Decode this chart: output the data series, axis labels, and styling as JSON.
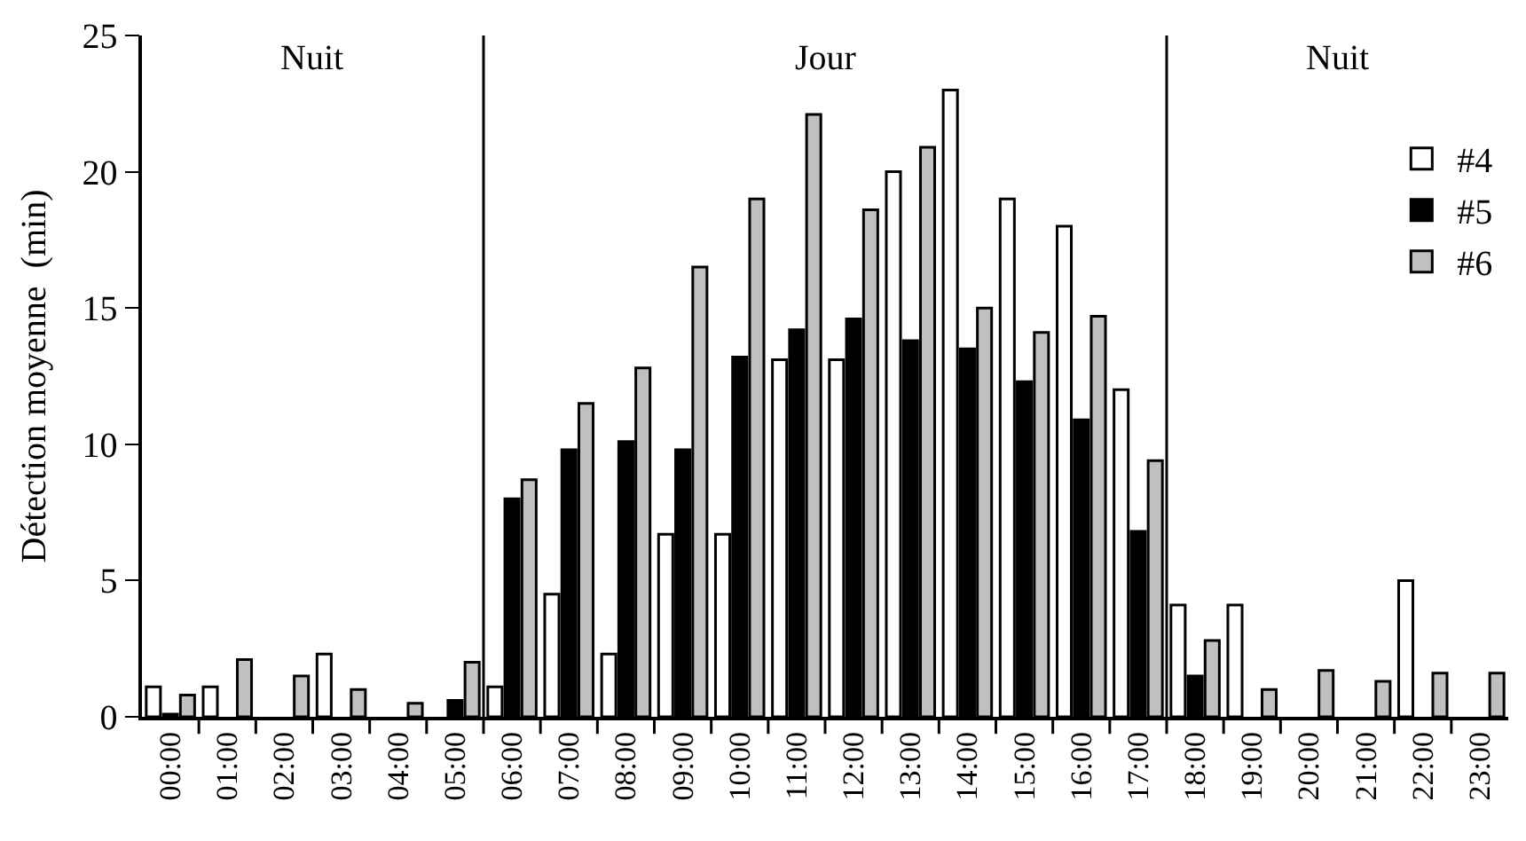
{
  "chart_data": {
    "type": "bar",
    "ylabel": "Détection moyenne  (min)",
    "x": [
      0,
      1,
      2,
      3,
      4,
      5,
      6,
      7,
      8,
      9,
      10,
      11,
      12,
      13,
      14,
      15,
      16,
      17,
      18,
      19,
      20,
      21,
      22,
      23
    ],
    "xlim": [
      -0.5,
      23.5
    ],
    "xticks": [
      {
        "value": 0,
        "label": "00:00"
      },
      {
        "value": 1,
        "label": "01:00"
      },
      {
        "value": 2,
        "label": "02:00"
      },
      {
        "value": 3,
        "label": "03:00"
      },
      {
        "value": 4,
        "label": "04:00"
      },
      {
        "value": 5,
        "label": "05:00"
      },
      {
        "value": 6,
        "label": "06:00"
      },
      {
        "value": 7,
        "label": "07:00"
      },
      {
        "value": 8,
        "label": "08:00"
      },
      {
        "value": 9,
        "label": "09:00"
      },
      {
        "value": 10,
        "label": "10:00"
      },
      {
        "value": 11,
        "label": "11:00"
      },
      {
        "value": 12,
        "label": "12:00"
      },
      {
        "value": 13,
        "label": "13:00"
      },
      {
        "value": 14,
        "label": "14:00"
      },
      {
        "value": 15,
        "label": "15:00"
      },
      {
        "value": 16,
        "label": "16:00"
      },
      {
        "value": 17,
        "label": "17:00"
      },
      {
        "value": 18,
        "label": "18:00"
      },
      {
        "value": 19,
        "label": "19:00"
      },
      {
        "value": 20,
        "label": "20:00"
      },
      {
        "value": 21,
        "label": "21:00"
      },
      {
        "value": 22,
        "label": "22:00"
      },
      {
        "value": 23,
        "label": "23:00"
      }
    ],
    "series": [
      {
        "name": "#4",
        "color": "#ffffff",
        "values": [
          1.1,
          1.1,
          0,
          2.3,
          0,
          0,
          1.1,
          4.5,
          2.3,
          6.7,
          6.7,
          13.1,
          13.1,
          20,
          23,
          19,
          18,
          12,
          4.1,
          4.1,
          0,
          0,
          5,
          0
        ]
      },
      {
        "name": "#5",
        "color": "#000000",
        "values": [
          0.1,
          0,
          0,
          0,
          0,
          0.6,
          8,
          9.8,
          10.1,
          9.8,
          13.2,
          14.2,
          14.6,
          13.8,
          13.5,
          12.3,
          10.9,
          6.8,
          1.5,
          0,
          0,
          0,
          0,
          0
        ]
      },
      {
        "name": "#6",
        "color": "#c0c0c0",
        "values": [
          0.8,
          2.1,
          1.5,
          1,
          0.5,
          2,
          8.7,
          11.5,
          12.8,
          16.5,
          19,
          22.1,
          18.6,
          20.9,
          15,
          14.1,
          14.7,
          9.4,
          2.8,
          1,
          1.7,
          1.3,
          1.6,
          1.6
        ]
      }
    ],
    "ref_lines": [
      {
        "axis": "x",
        "value": 5.5,
        "color": "#000000",
        "line_style": "solid"
      },
      {
        "axis": "x",
        "value": 17.5,
        "color": "#000000",
        "line_style": "solid"
      }
    ],
    "annotations": [
      "Nuit",
      "Jour",
      "Nuit"
    ],
    "ylim": [
      0,
      25
    ],
    "yticks": [
      0,
      5,
      10,
      15,
      20,
      25
    ],
    "legend": "top right"
  }
}
